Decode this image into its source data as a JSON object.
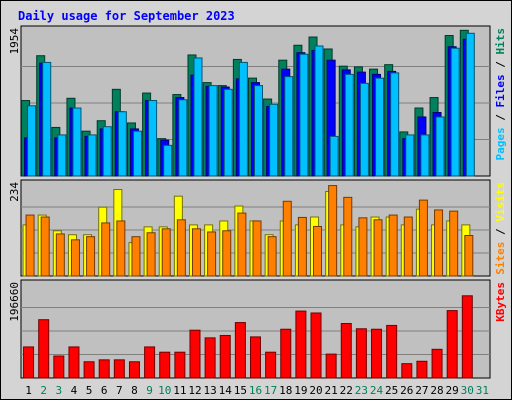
{
  "chart_data": {
    "type": "bar",
    "title": "Daily usage for September 2023",
    "x": [
      "1",
      "2",
      "3",
      "4",
      "5",
      "6",
      "7",
      "8",
      "9",
      "10",
      "11",
      "12",
      "13",
      "14",
      "15",
      "16",
      "17",
      "18",
      "19",
      "20",
      "21",
      "22",
      "23",
      "24",
      "25",
      "26",
      "27",
      "28",
      "29",
      "30",
      "31"
    ],
    "weekend_days": [
      2,
      3,
      9,
      10,
      16,
      17,
      23,
      24,
      30,
      31
    ],
    "colors": {
      "hits": "#00805c",
      "files": "#0000ff",
      "pages": "#00c0ff",
      "visits": "#ffff00",
      "sites": "#ff8000",
      "kbytes": "#ff0000",
      "title": "#0000ff",
      "weekday_label": "#000000",
      "weekend_label": "#00805c",
      "panel_bg": "#c0c0c0",
      "frame_bg": "#d4d4d4",
      "grid": "#808080"
    },
    "panels": [
      {
        "id": "hits",
        "max_label": "1954",
        "ymax": 1954,
        "axis_legend": [
          {
            "text": "Pages",
            "color": "#00c0ff"
          },
          {
            "text": " / ",
            "color": "#000000"
          },
          {
            "text": "Files",
            "color": "#0000ff"
          },
          {
            "text": " / ",
            "color": "#000000"
          },
          {
            "text": "Hits",
            "color": "#00805c"
          }
        ],
        "series": [
          {
            "name": "Hits",
            "color": "#00805c",
            "values": [
              1010,
              1610,
              650,
              1040,
              600,
              740,
              1160,
              710,
              1110,
              500,
              1090,
              1620,
              1250,
              1210,
              1560,
              1310,
              1030,
              1550,
              1750,
              1860,
              1700,
              1470,
              1460,
              1430,
              1490,
              590,
              910,
              1050,
              1880,
              1950,
              0
            ]
          },
          {
            "name": "Files",
            "color": "#0000ff",
            "values": [
              510,
              1510,
              510,
              910,
              530,
              630,
              860,
              630,
              1010,
              480,
              1050,
              1350,
              1200,
              1190,
              1300,
              1250,
              930,
              1430,
              1650,
              1680,
              1550,
              1420,
              1390,
              1360,
              1400,
              500,
              790,
              850,
              1730,
              1830,
              0
            ]
          },
          {
            "name": "Pages",
            "color": "#00c0ff",
            "values": [
              940,
              1520,
              550,
              910,
              550,
              660,
              860,
              600,
              1010,
              410,
              1020,
              1580,
              1210,
              1160,
              1520,
              1210,
              960,
              1330,
              1630,
              1740,
              530,
              1360,
              1240,
              1310,
              1380,
              550,
              550,
              790,
              1710,
              1910,
              0
            ]
          }
        ]
      },
      {
        "id": "visits",
        "max_label": "234",
        "ymax": 234,
        "axis_legend": [
          {
            "text": "Sites",
            "color": "#ff8000"
          },
          {
            "text": " / ",
            "color": "#000000"
          },
          {
            "text": "Visits",
            "color": "#ffff00"
          }
        ],
        "series": [
          {
            "name": "Visits",
            "color": "#ffff00",
            "values": [
              130,
              155,
              115,
              105,
              105,
              175,
              220,
              85,
              125,
              125,
              203,
              130,
              130,
              140,
              178,
              140,
              105,
              140,
              130,
              150,
              215,
              130,
              125,
              150,
              150,
              130,
              170,
              130,
              140,
              130,
              0
            ]
          },
          {
            "name": "Sites",
            "color": "#ff8000",
            "values": [
              155,
              150,
              107,
              92,
              100,
              135,
              140,
              100,
              110,
              120,
              143,
              120,
              112,
              115,
              160,
              140,
              100,
              190,
              149,
              126,
              230,
              200,
              148,
              143,
              155,
              150,
              193,
              168,
              165,
              103,
              0
            ]
          }
        ]
      },
      {
        "id": "kbytes",
        "max_label": "196660",
        "ymax": 196660,
        "axis_legend": [
          {
            "text": "KBytes",
            "color": "#ff0000"
          }
        ],
        "series": [
          {
            "name": "KBytes",
            "color": "#ff0000",
            "values": [
              65000,
              122000,
              46000,
              65000,
              34000,
              38000,
              38000,
              34000,
              65000,
              54000,
              54000,
              100000,
              84000,
              89000,
              116000,
              86000,
              54000,
              102000,
              140000,
              136000,
              50000,
              114000,
              103000,
              102000,
              110000,
              30000,
              35000,
              60000,
              141000,
              172000,
              0
            ]
          }
        ]
      }
    ]
  }
}
